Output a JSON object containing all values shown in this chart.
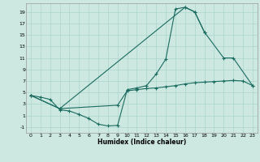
{
  "xlabel": "Humidex (Indice chaleur)",
  "bg_color": "#cce8e0",
  "grid_color": "#aad4cc",
  "line_color": "#1a6b60",
  "xlim": [
    -0.5,
    23.5
  ],
  "ylim": [
    -2.0,
    20.5
  ],
  "xticks": [
    0,
    1,
    2,
    3,
    4,
    5,
    6,
    7,
    8,
    9,
    10,
    11,
    12,
    13,
    14,
    15,
    16,
    17,
    18,
    19,
    20,
    21,
    22,
    23
  ],
  "yticks": [
    -1,
    1,
    3,
    5,
    7,
    9,
    11,
    13,
    15,
    17,
    19
  ],
  "curve1_x": [
    0,
    1,
    2,
    3,
    4,
    5,
    6,
    7,
    8,
    9,
    10,
    11,
    12,
    13,
    14,
    15,
    16,
    17,
    18
  ],
  "curve1_y": [
    4.5,
    4.2,
    3.8,
    2.0,
    1.8,
    1.2,
    0.5,
    -0.5,
    -0.8,
    -0.7,
    5.5,
    5.8,
    6.2,
    8.2,
    10.8,
    19.5,
    19.8,
    19.0,
    15.5
  ],
  "curve2_x": [
    0,
    3,
    16,
    17,
    18,
    20,
    21,
    23
  ],
  "curve2_y": [
    4.5,
    2.2,
    19.8,
    19.0,
    15.5,
    11.0,
    11.0,
    6.2
  ],
  "curve3_x": [
    0,
    3,
    9,
    10,
    11,
    12,
    13,
    14,
    15,
    16,
    17,
    18,
    19,
    20,
    21,
    22,
    23
  ],
  "curve3_y": [
    4.5,
    2.2,
    2.8,
    5.3,
    5.5,
    5.7,
    5.8,
    6.0,
    6.2,
    6.5,
    6.7,
    6.8,
    6.9,
    7.0,
    7.1,
    7.0,
    6.2
  ]
}
